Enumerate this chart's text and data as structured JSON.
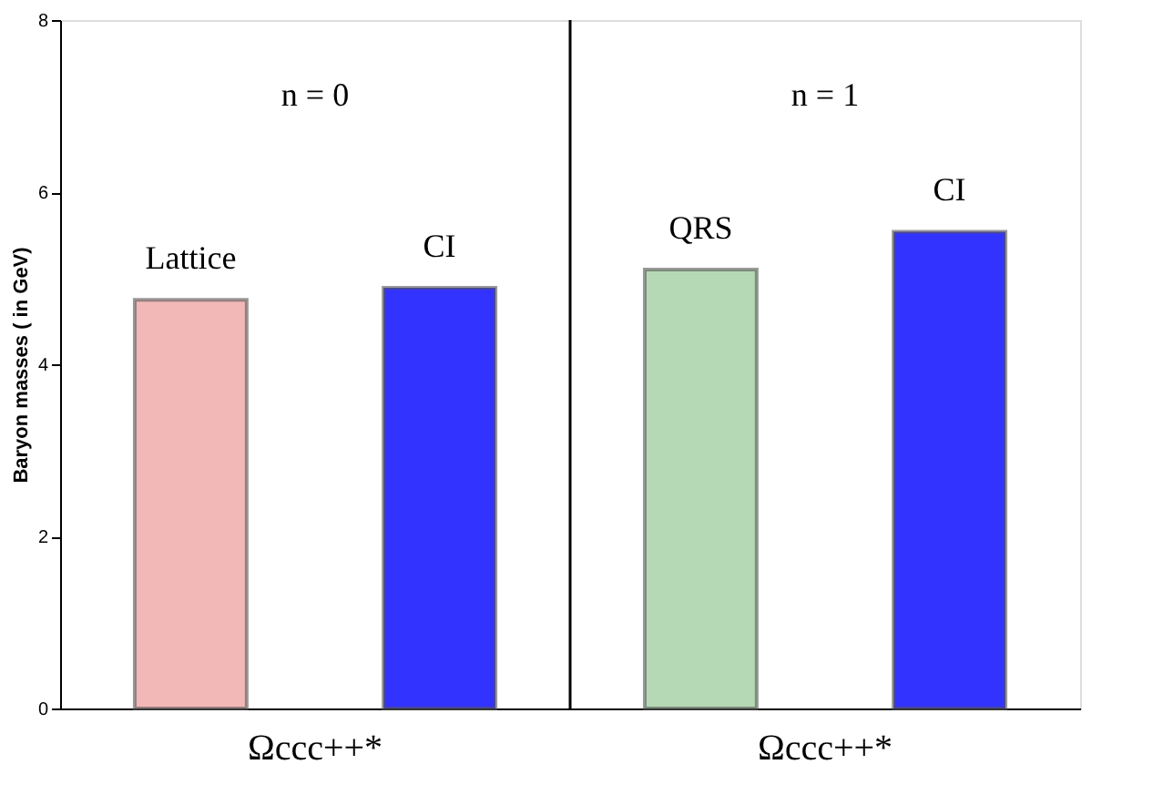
{
  "chart_data": {
    "type": "bar",
    "ylabel": "Baryon masses ( in GeV)",
    "categories": [
      "Ωccc++*",
      "Ωccc++*"
    ],
    "series": [
      {
        "name": "Lattice",
        "color": "#f2b8b8",
        "values": [
          4.75,
          null
        ]
      },
      {
        "name": "CI",
        "color": "#3333ff",
        "values": [
          4.89,
          null
        ]
      },
      {
        "name": "QRS",
        "color": "#b5d9b5",
        "values": [
          null,
          5.1
        ]
      },
      {
        "name": "CI",
        "color": "#3333ff",
        "values": [
          null,
          5.54
        ]
      }
    ],
    "ylim": [
      0,
      8
    ],
    "yticks": [
      0,
      2,
      4,
      6,
      8
    ],
    "annotations": [
      "n = 0",
      "n = 1"
    ],
    "grid": false
  }
}
